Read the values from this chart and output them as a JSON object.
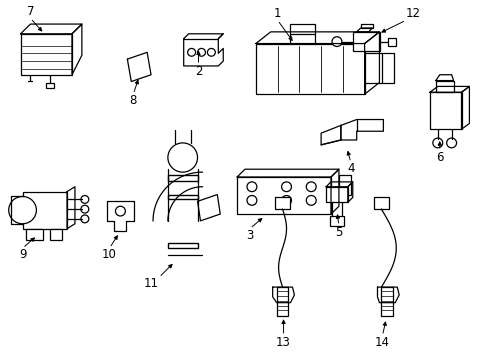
{
  "bg": "#ffffff",
  "border": "#aaaaaa",
  "fw": 4.89,
  "fh": 3.6,
  "dpi": 100,
  "lc": "#000000",
  "lw": 0.9,
  "lfs": 8.5
}
